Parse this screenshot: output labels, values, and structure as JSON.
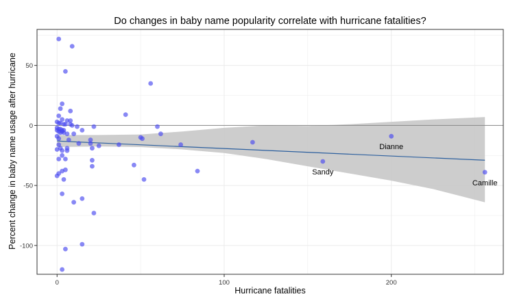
{
  "chart_data": {
    "type": "scatter",
    "title": "Do changes in baby name popularity correlate with hurricane fatalities?",
    "xlabel": "Hurricane fatalities",
    "ylabel": "Percent change in baby name usage after hurricane",
    "xlim": [
      -12,
      267
    ],
    "ylim": [
      -124,
      80
    ],
    "x_ticks": [
      0,
      100,
      200
    ],
    "y_ticks": [
      50,
      0,
      -50,
      -100
    ],
    "x_tick_labels": [
      "0",
      "100",
      "200"
    ],
    "y_tick_labels": [
      "50",
      "0",
      "-50",
      "-100"
    ],
    "grid": true,
    "reference_line_y": 0,
    "colors": {
      "points": "#4848f0",
      "trend": "#2c5f9e",
      "band": "#c8c8c8",
      "reference": "#888888",
      "panel_border": "#333333",
      "grid": "#ebebeb"
    },
    "points": [
      {
        "x": 1,
        "y": 72
      },
      {
        "x": 9,
        "y": 66
      },
      {
        "x": 5,
        "y": 45
      },
      {
        "x": 56,
        "y": 35
      },
      {
        "x": 3,
        "y": 18
      },
      {
        "x": 2,
        "y": 14
      },
      {
        "x": 8,
        "y": 12
      },
      {
        "x": 41,
        "y": 9
      },
      {
        "x": 1,
        "y": 8
      },
      {
        "x": 3,
        "y": 5
      },
      {
        "x": 6,
        "y": 4
      },
      {
        "x": 8,
        "y": 4
      },
      {
        "x": 0,
        "y": 3
      },
      {
        "x": 1,
        "y": 2
      },
      {
        "x": 2,
        "y": 2
      },
      {
        "x": 4,
        "y": 1
      },
      {
        "x": 5,
        "y": 1
      },
      {
        "x": 8,
        "y": 1
      },
      {
        "x": 9,
        "y": 0
      },
      {
        "x": 12,
        "y": -1
      },
      {
        "x": 22,
        "y": -1
      },
      {
        "x": 60,
        "y": -1
      },
      {
        "x": 0,
        "y": -2
      },
      {
        "x": 1,
        "y": -3
      },
      {
        "x": 2,
        "y": -3
      },
      {
        "x": 3,
        "y": -4
      },
      {
        "x": 4,
        "y": -4
      },
      {
        "x": 0,
        "y": -4
      },
      {
        "x": 1,
        "y": -5
      },
      {
        "x": 3,
        "y": -5
      },
      {
        "x": 15,
        "y": -4
      },
      {
        "x": 2,
        "y": -6
      },
      {
        "x": 4,
        "y": -6
      },
      {
        "x": 6,
        "y": -7
      },
      {
        "x": 10,
        "y": -7
      },
      {
        "x": 62,
        "y": -7
      },
      {
        "x": 0,
        "y": -9
      },
      {
        "x": 50,
        "y": -10
      },
      {
        "x": 51,
        "y": -11
      },
      {
        "x": 1,
        "y": -11
      },
      {
        "x": 7,
        "y": -12
      },
      {
        "x": 20,
        "y": -12
      },
      {
        "x": 13,
        "y": -15
      },
      {
        "x": 20,
        "y": -15
      },
      {
        "x": 1,
        "y": -16
      },
      {
        "x": 37,
        "y": -16
      },
      {
        "x": 74,
        "y": -16
      },
      {
        "x": 25,
        "y": -17
      },
      {
        "x": 2,
        "y": -19
      },
      {
        "x": 6,
        "y": -19
      },
      {
        "x": 21,
        "y": -19
      },
      {
        "x": 0,
        "y": -20
      },
      {
        "x": 3,
        "y": -21
      },
      {
        "x": 6,
        "y": -21
      },
      {
        "x": 3,
        "y": -25
      },
      {
        "x": 1,
        "y": -28
      },
      {
        "x": 5,
        "y": -28
      },
      {
        "x": 21,
        "y": -29
      },
      {
        "x": 46,
        "y": -33
      },
      {
        "x": 21,
        "y": -34
      },
      {
        "x": 5,
        "y": -37
      },
      {
        "x": 3,
        "y": -38
      },
      {
        "x": 84,
        "y": -38
      },
      {
        "x": 1,
        "y": -40
      },
      {
        "x": 0,
        "y": -42
      },
      {
        "x": 4,
        "y": -45
      },
      {
        "x": 52,
        "y": -45
      },
      {
        "x": 3,
        "y": -57
      },
      {
        "x": 15,
        "y": -61
      },
      {
        "x": 10,
        "y": -64
      },
      {
        "x": 22,
        "y": -73
      },
      {
        "x": 15,
        "y": -99
      },
      {
        "x": 5,
        "y": -103
      },
      {
        "x": 3,
        "y": -120
      },
      {
        "x": 117,
        "y": -14
      },
      {
        "x": 159,
        "y": -30
      },
      {
        "x": 200,
        "y": -9
      },
      {
        "x": 256,
        "y": -39
      }
    ],
    "annotations": [
      {
        "label": "Dianne",
        "x": 200,
        "y": -9
      },
      {
        "label": "Sandy",
        "x": 159,
        "y": -30
      },
      {
        "label": "Camille",
        "x": 256,
        "y": -39
      }
    ],
    "trend": {
      "x": [
        0,
        256
      ],
      "y": [
        -13,
        -29
      ]
    },
    "confidence_band": {
      "x": [
        0,
        25,
        50,
        75,
        100,
        125,
        150,
        175,
        200,
        225,
        256
      ],
      "lower": [
        -18,
        -17.5,
        -18,
        -20,
        -23,
        -28,
        -34,
        -40,
        -46,
        -53,
        -64
      ],
      "upper": [
        -8,
        -8,
        -7.5,
        -5,
        -2,
        0,
        -0.5,
        1,
        3,
        5,
        7
      ]
    }
  }
}
